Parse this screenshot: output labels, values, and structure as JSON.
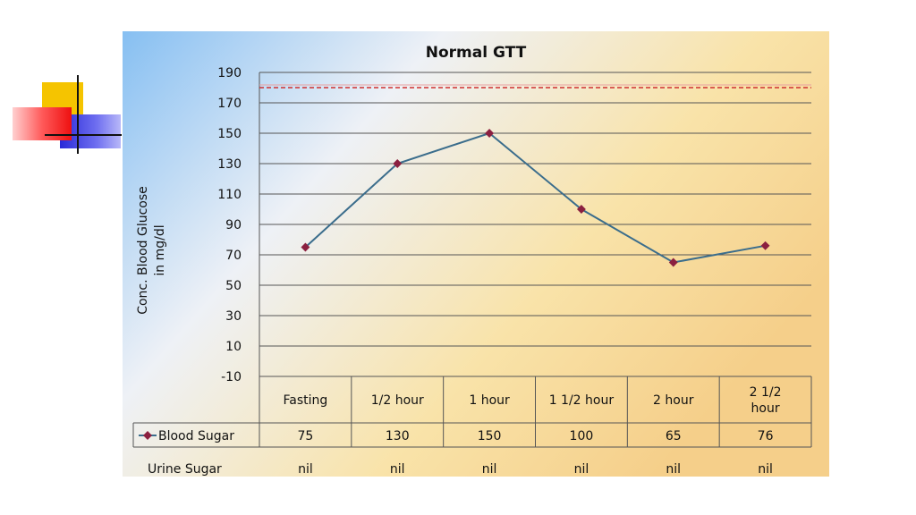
{
  "chart_data": {
    "type": "line",
    "title": "Normal GTT",
    "ylabel_lines": [
      "Conc. Blood Glucose",
      "in mg/dl"
    ],
    "xlabel": "",
    "ylim": [
      -10,
      190
    ],
    "yticks": [
      190,
      170,
      150,
      130,
      110,
      90,
      70,
      50,
      30,
      10,
      -10
    ],
    "categories": [
      [
        "Fasting"
      ],
      [
        "1/2 hour"
      ],
      [
        "1 hour"
      ],
      [
        "1 1/2 hour"
      ],
      [
        "2 hour"
      ],
      [
        "2 1/2",
        "hour"
      ]
    ],
    "series": [
      {
        "name": "Blood Sugar",
        "values": [
          75,
          130,
          150,
          100,
          65,
          76
        ],
        "color": "#3b6d8c",
        "marker_color": "#8b2040"
      }
    ],
    "reference_line": {
      "value": 180,
      "color": "#d03030"
    },
    "extra_row": {
      "label": "Urine Sugar",
      "values": [
        "nil",
        "nil",
        "nil",
        "nil",
        "nil",
        "nil"
      ]
    },
    "grid": true,
    "legend": "data-table"
  }
}
